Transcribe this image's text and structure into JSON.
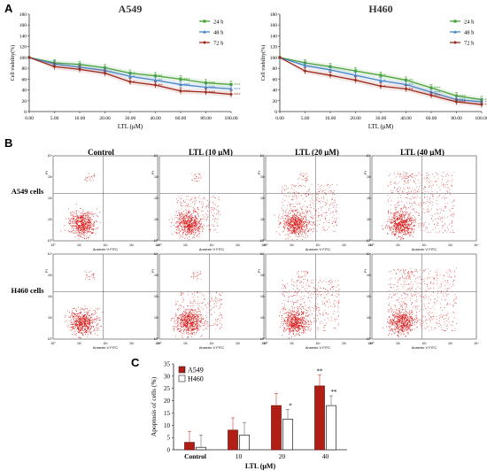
{
  "panels": {
    "a_letter": "A",
    "b_letter": "B",
    "c_letter": "C"
  },
  "viability": {
    "ylabel": "Cell viability(%)",
    "xlabel": "LTL (μM)",
    "x_ticks": [
      "0.00",
      "5.00",
      "10.00",
      "20.00",
      "30.00",
      "40.00",
      "60.00",
      "80.00",
      "100.00"
    ],
    "y_ticks": [
      0,
      20,
      40,
      60,
      80,
      100,
      120,
      140,
      160,
      180
    ],
    "legend": [
      "24 h",
      "48 h",
      "72 h"
    ],
    "colors": {
      "h24": "#4aa33a",
      "h48": "#4a86c8",
      "h72": "#9b2a1c"
    }
  },
  "flow": {
    "columns": [
      "Control",
      "LTL (10 μM)",
      "LTL (20 μM)",
      "LTL (40 μM)"
    ],
    "rows": [
      "A549 cells",
      "H460 cells"
    ],
    "x_axis_label": "Annexin V FITC",
    "y_axis_label": "PI",
    "dot_color": "#d81818"
  },
  "chart_data": [
    {
      "type": "line",
      "title": "A549",
      "xlabel": "LTL (μM)",
      "ylabel": "Cell viability(%)",
      "x": [
        "0.00",
        "5.00",
        "10.00",
        "20.00",
        "30.00",
        "40.00",
        "60.00",
        "80.00",
        "100.00"
      ],
      "ylim": [
        0,
        180
      ],
      "series": [
        {
          "name": "24 h",
          "values": [
            100,
            90,
            87,
            81,
            71,
            66,
            60,
            53,
            50
          ]
        },
        {
          "name": "48 h",
          "values": [
            100,
            88,
            82,
            76,
            65,
            58,
            50,
            45,
            42
          ]
        },
        {
          "name": "72 h",
          "values": [
            100,
            83,
            78,
            71,
            55,
            49,
            38,
            36,
            32
          ]
        }
      ],
      "legend_position": "top-right",
      "annotations": [
        "*",
        "**",
        "***"
      ]
    },
    {
      "type": "line",
      "title": "H460",
      "xlabel": "LTL (μM)",
      "ylabel": "Cell viability(%)",
      "x": [
        "0.00",
        "5.00",
        "10.00",
        "20.00",
        "30.00",
        "40.00",
        "60.00",
        "80.00",
        "100.00"
      ],
      "ylim": [
        0,
        180
      ],
      "series": [
        {
          "name": "24 h",
          "values": [
            100,
            90,
            83,
            75,
            67,
            58,
            44,
            29,
            22
          ]
        },
        {
          "name": "48 h",
          "values": [
            100,
            85,
            77,
            67,
            57,
            50,
            36,
            22,
            18
          ]
        },
        {
          "name": "72 h",
          "values": [
            100,
            75,
            67,
            58,
            47,
            42,
            30,
            18,
            13
          ]
        }
      ],
      "legend_position": "top-right",
      "annotations": [
        "*",
        "**",
        "***"
      ]
    },
    {
      "type": "bar",
      "xlabel": "LTL (μM)",
      "ylabel": "Apoptosis of cells (%)",
      "categories": [
        "Control",
        "10",
        "20",
        "40"
      ],
      "ylim": [
        0,
        35
      ],
      "y_ticks": [
        0,
        5,
        10,
        15,
        20,
        25,
        30,
        35
      ],
      "series": [
        {
          "name": "A549",
          "values": [
            3.0,
            8.0,
            18.0,
            26.0
          ],
          "errors": [
            4.5,
            5.0,
            5.0,
            4.5
          ],
          "color": "#b01e16"
        },
        {
          "name": "H460",
          "values": [
            1.0,
            6.0,
            12.5,
            18.0
          ],
          "errors": [
            5.0,
            5.0,
            4.0,
            4.0
          ],
          "color": "#ffffff"
        }
      ],
      "significance": {
        "A549": [
          "",
          "",
          "",
          "**"
        ],
        "H460": [
          "",
          "",
          "*",
          "**"
        ]
      },
      "legend_position": "top-left"
    }
  ]
}
